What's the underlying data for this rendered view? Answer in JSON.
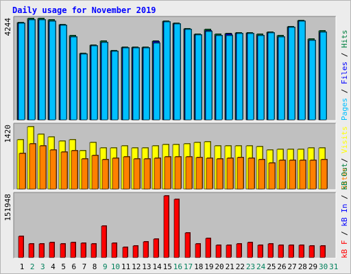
{
  "title": "Daily usage for November 2019",
  "colors": {
    "pages": "#00c0ff",
    "files": "#0000ff",
    "hits": "#008040",
    "visits": "#ffff00",
    "sites": "#ff8000",
    "kbytes": "#ff0000",
    "title": "#0000ff",
    "weekday": "#000000",
    "weekend": "#00805c",
    "panel": "#c0c0c0"
  },
  "chart_data": [
    {
      "type": "bar",
      "name": "hits-files-pages",
      "max_label": "4244",
      "ymax": 4244,
      "legend": [
        {
          "text": "Pages",
          "color": "#00c0ff"
        },
        {
          "text": "Files",
          "color": "#0000ff"
        },
        {
          "text": "Hits",
          "color": "#008040"
        }
      ],
      "series": [
        {
          "name": "Hits",
          "values": [
            4140,
            4290,
            4290,
            4240,
            4040,
            3570,
            2830,
            3180,
            3330,
            2950,
            3090,
            3090,
            3090,
            3350,
            4200,
            4100,
            3880,
            3640,
            3830,
            3620,
            3660,
            3690,
            3690,
            3620,
            3730,
            3570,
            3960,
            4220,
            3420,
            3770,
            0
          ]
        },
        {
          "name": "Files",
          "values": [
            4100,
            4250,
            4250,
            4200,
            4000,
            3530,
            2790,
            3140,
            3290,
            2910,
            3050,
            3050,
            3050,
            3310,
            4160,
            4060,
            3840,
            3600,
            3790,
            3580,
            3620,
            3650,
            3650,
            3580,
            3690,
            3530,
            3920,
            4180,
            3380,
            3730,
            0
          ]
        },
        {
          "name": "Pages",
          "values": [
            4100,
            4250,
            4250,
            4200,
            4000,
            3530,
            2790,
            3140,
            3290,
            2910,
            3050,
            3050,
            3050,
            3250,
            4160,
            4060,
            3840,
            3600,
            3750,
            3580,
            3580,
            3650,
            3650,
            3580,
            3690,
            3530,
            3920,
            4180,
            3380,
            3730,
            0
          ]
        }
      ]
    },
    {
      "type": "bar",
      "name": "visits-sites",
      "max_label": "1420",
      "ymax": 1420,
      "legend": [
        {
          "text": "Sites",
          "color": "#ff8000"
        },
        {
          "text": "/",
          "color": "#000000"
        },
        {
          "text": "Visits",
          "color": "#ffff00"
        }
      ],
      "series": [
        {
          "name": "Visits",
          "values": [
            1130,
            1420,
            1250,
            1180,
            1100,
            1130,
            880,
            1060,
            940,
            940,
            990,
            940,
            940,
            980,
            1010,
            1010,
            1030,
            1060,
            1080,
            980,
            990,
            990,
            980,
            960,
            890,
            900,
            900,
            900,
            930,
            940,
            0
          ]
        },
        {
          "name": "Sites",
          "values": [
            810,
            1030,
            980,
            890,
            840,
            880,
            680,
            760,
            670,
            700,
            740,
            690,
            680,
            700,
            740,
            730,
            730,
            720,
            700,
            680,
            700,
            720,
            700,
            670,
            600,
            660,
            660,
            660,
            660,
            670,
            0
          ]
        }
      ]
    },
    {
      "type": "bar",
      "name": "kbytes",
      "max_label": "151948",
      "ymax": 151948,
      "legend": [
        {
          "text": "kB F",
          "color": "#ff0000"
        },
        {
          "text": "/",
          "color": "#000000"
        },
        {
          "text": "kB In",
          "color": "#0000ff"
        },
        {
          "text": "/",
          "color": "#000000"
        },
        {
          "text": "kB Out",
          "color": "#008040"
        }
      ],
      "series": [
        {
          "name": "kB F",
          "values": [
            52000,
            34000,
            34000,
            37000,
            34000,
            37000,
            35000,
            34000,
            77000,
            35000,
            25000,
            29000,
            38000,
            46000,
            151948,
            143000,
            60000,
            33000,
            47000,
            31000,
            31000,
            33000,
            37000,
            31000,
            33000,
            30000,
            31000,
            31000,
            29000,
            29000,
            0
          ]
        }
      ]
    }
  ],
  "days": [
    {
      "label": "1",
      "weekend": false
    },
    {
      "label": "2",
      "weekend": true
    },
    {
      "label": "3",
      "weekend": true
    },
    {
      "label": "4",
      "weekend": false
    },
    {
      "label": "5",
      "weekend": false
    },
    {
      "label": "6",
      "weekend": false
    },
    {
      "label": "7",
      "weekend": false
    },
    {
      "label": "8",
      "weekend": false
    },
    {
      "label": "9",
      "weekend": true
    },
    {
      "label": "10",
      "weekend": true
    },
    {
      "label": "11",
      "weekend": false
    },
    {
      "label": "12",
      "weekend": false
    },
    {
      "label": "13",
      "weekend": false
    },
    {
      "label": "14",
      "weekend": false
    },
    {
      "label": "15",
      "weekend": false
    },
    {
      "label": "16",
      "weekend": true
    },
    {
      "label": "17",
      "weekend": true
    },
    {
      "label": "18",
      "weekend": false
    },
    {
      "label": "19",
      "weekend": false
    },
    {
      "label": "20",
      "weekend": false
    },
    {
      "label": "21",
      "weekend": false
    },
    {
      "label": "22",
      "weekend": false
    },
    {
      "label": "23",
      "weekend": true
    },
    {
      "label": "24",
      "weekend": true
    },
    {
      "label": "25",
      "weekend": false
    },
    {
      "label": "26",
      "weekend": false
    },
    {
      "label": "27",
      "weekend": false
    },
    {
      "label": "28",
      "weekend": false
    },
    {
      "label": "29",
      "weekend": false
    },
    {
      "label": "30",
      "weekend": true
    },
    {
      "label": "31",
      "weekend": true
    }
  ]
}
